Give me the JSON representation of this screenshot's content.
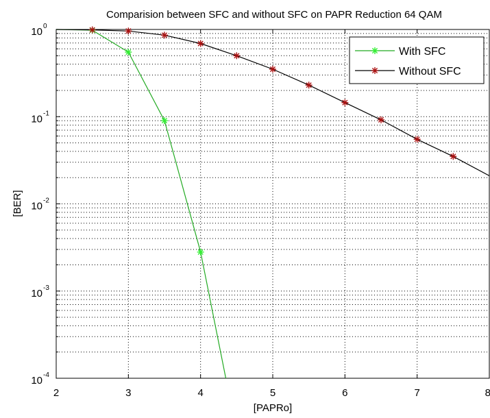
{
  "chart_data": {
    "type": "line",
    "title": "Comparision between SFC and without SFC on PAPR Reduction 64 QAM",
    "xlabel": "[PAPRo]",
    "ylabel": "[BER]",
    "xlim": [
      2,
      8
    ],
    "ylim": [
      0.0001,
      1
    ],
    "yscale": "log",
    "grid": true,
    "legend_position": "top-right",
    "x_ticks": [
      "2",
      "3",
      "4",
      "5",
      "6",
      "7",
      "8"
    ],
    "y_ticks": [
      {
        "base": "10",
        "exp": "0"
      },
      {
        "base": "10",
        "exp": "-1"
      },
      {
        "base": "10",
        "exp": "-2"
      },
      {
        "base": "10",
        "exp": "-3"
      },
      {
        "base": "10",
        "exp": "-4"
      }
    ],
    "series": [
      {
        "name": "With SFC",
        "color": "#22aa22",
        "marker_color": "#33ee33",
        "marker": "star",
        "x": [
          2.0,
          2.5,
          3.0,
          3.5,
          4.0,
          4.35
        ],
        "y": [
          1.0,
          0.98,
          0.55,
          0.09,
          0.0028,
          0.0001
        ],
        "marker_indices": [
          1,
          2,
          3,
          4
        ]
      },
      {
        "name": "Without SFC",
        "color": "#000000",
        "marker_color": "#aa1111",
        "marker": "star",
        "x": [
          2.0,
          2.5,
          3.0,
          3.5,
          4.0,
          4.5,
          5.0,
          5.5,
          6.0,
          6.5,
          7.0,
          7.5,
          8.0
        ],
        "y": [
          1.0,
          0.99,
          0.96,
          0.86,
          0.69,
          0.5,
          0.35,
          0.23,
          0.145,
          0.092,
          0.055,
          0.035,
          0.021
        ],
        "marker_indices": [
          1,
          2,
          3,
          4,
          5,
          6,
          7,
          8,
          9,
          10,
          11
        ]
      }
    ]
  }
}
